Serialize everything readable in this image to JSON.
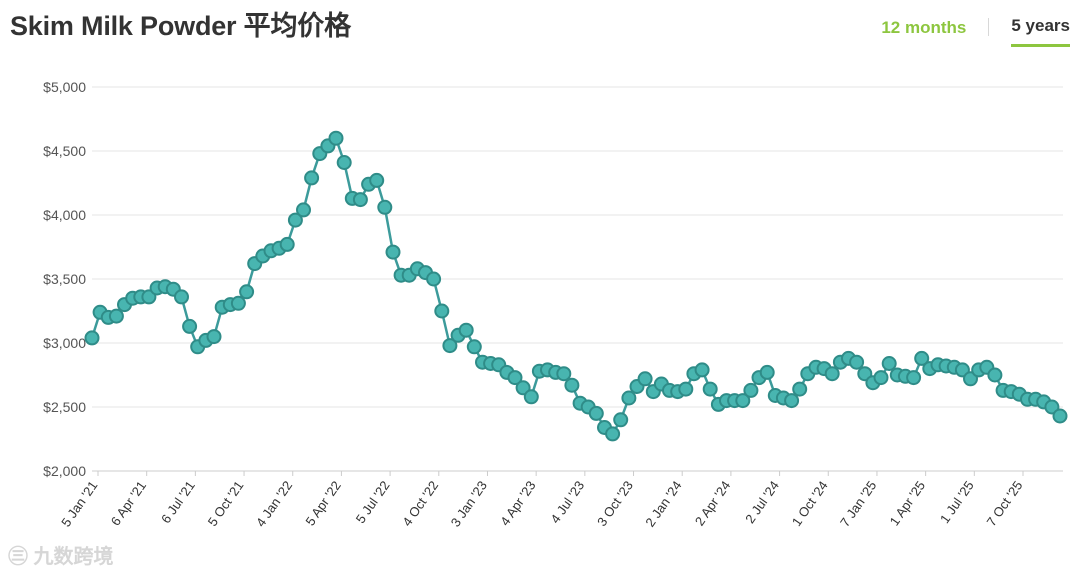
{
  "header": {
    "title": "Skim Milk Powder 平均价格",
    "tabs": [
      {
        "label": "12 months",
        "active": false
      },
      {
        "label": "5 years",
        "active": true
      }
    ]
  },
  "watermark": "㊂ 九数跨境",
  "colors": {
    "line": "#3c9b9b",
    "marker": "#48b5b0",
    "accent": "#8dc63f"
  },
  "chart_data": {
    "type": "line",
    "title": "Skim Milk Powder 平均价格",
    "xlabel": "",
    "ylabel": "",
    "ylim": [
      2000,
      5000
    ],
    "y_ticks": [
      2000,
      2500,
      3000,
      3500,
      4000,
      4500,
      5000
    ],
    "y_tick_labels": [
      "$2,000",
      "$2,500",
      "$3,000",
      "$3,500",
      "$4,000",
      "$4,500",
      "$5,000"
    ],
    "x_tick_labels": [
      "5 Jan '21",
      "6 Apr '21",
      "6 Jul '21",
      "5 Oct '21",
      "4 Jan '22",
      "5 Apr '22",
      "5 Jul '22",
      "4 Oct '22",
      "3 Jan '23",
      "4 Apr '23",
      "4 Jul '23",
      "3 Oct '23",
      "2 Jan '24",
      "2 Apr '24",
      "2 Jul '24",
      "1 Oct '24",
      "7 Jan '25",
      "1 Apr '25",
      "1 Jul '25",
      "7 Oct '25"
    ],
    "grid": true,
    "legend": "none",
    "series": [
      {
        "values": [
          3040,
          3240,
          3200,
          3210,
          3300,
          3350,
          3360,
          3360,
          3430,
          3440,
          3420,
          3360,
          3130,
          2970,
          3020,
          3050,
          3280,
          3300,
          3310,
          3400,
          3620,
          3680,
          3720,
          3740,
          3770,
          3960,
          4040,
          4290,
          4480,
          4540,
          4600,
          4410,
          4130,
          4120,
          4240,
          4270,
          4060,
          3710,
          3530,
          3530,
          3580,
          3550,
          3500,
          3250,
          2980,
          3060,
          3100,
          2970,
          2850,
          2840,
          2830,
          2770,
          2730,
          2650,
          2580,
          2780,
          2790,
          2770,
          2760,
          2670,
          2530,
          2500,
          2450,
          2340,
          2290,
          2400,
          2570,
          2660,
          2720,
          2620,
          2680,
          2630,
          2620,
          2640,
          2760,
          2790,
          2640,
          2520,
          2550,
          2550,
          2550,
          2630,
          2730,
          2770,
          2590,
          2570,
          2550,
          2640,
          2760,
          2810,
          2800,
          2760,
          2850,
          2880,
          2850,
          2760,
          2690,
          2730,
          2840,
          2750,
          2740,
          2730,
          2880,
          2800,
          2830,
          2820,
          2810,
          2790,
          2720,
          2790,
          2810,
          2750,
          2630,
          2620,
          2600,
          2560,
          2560,
          2540,
          2500,
          2430
        ]
      }
    ]
  }
}
